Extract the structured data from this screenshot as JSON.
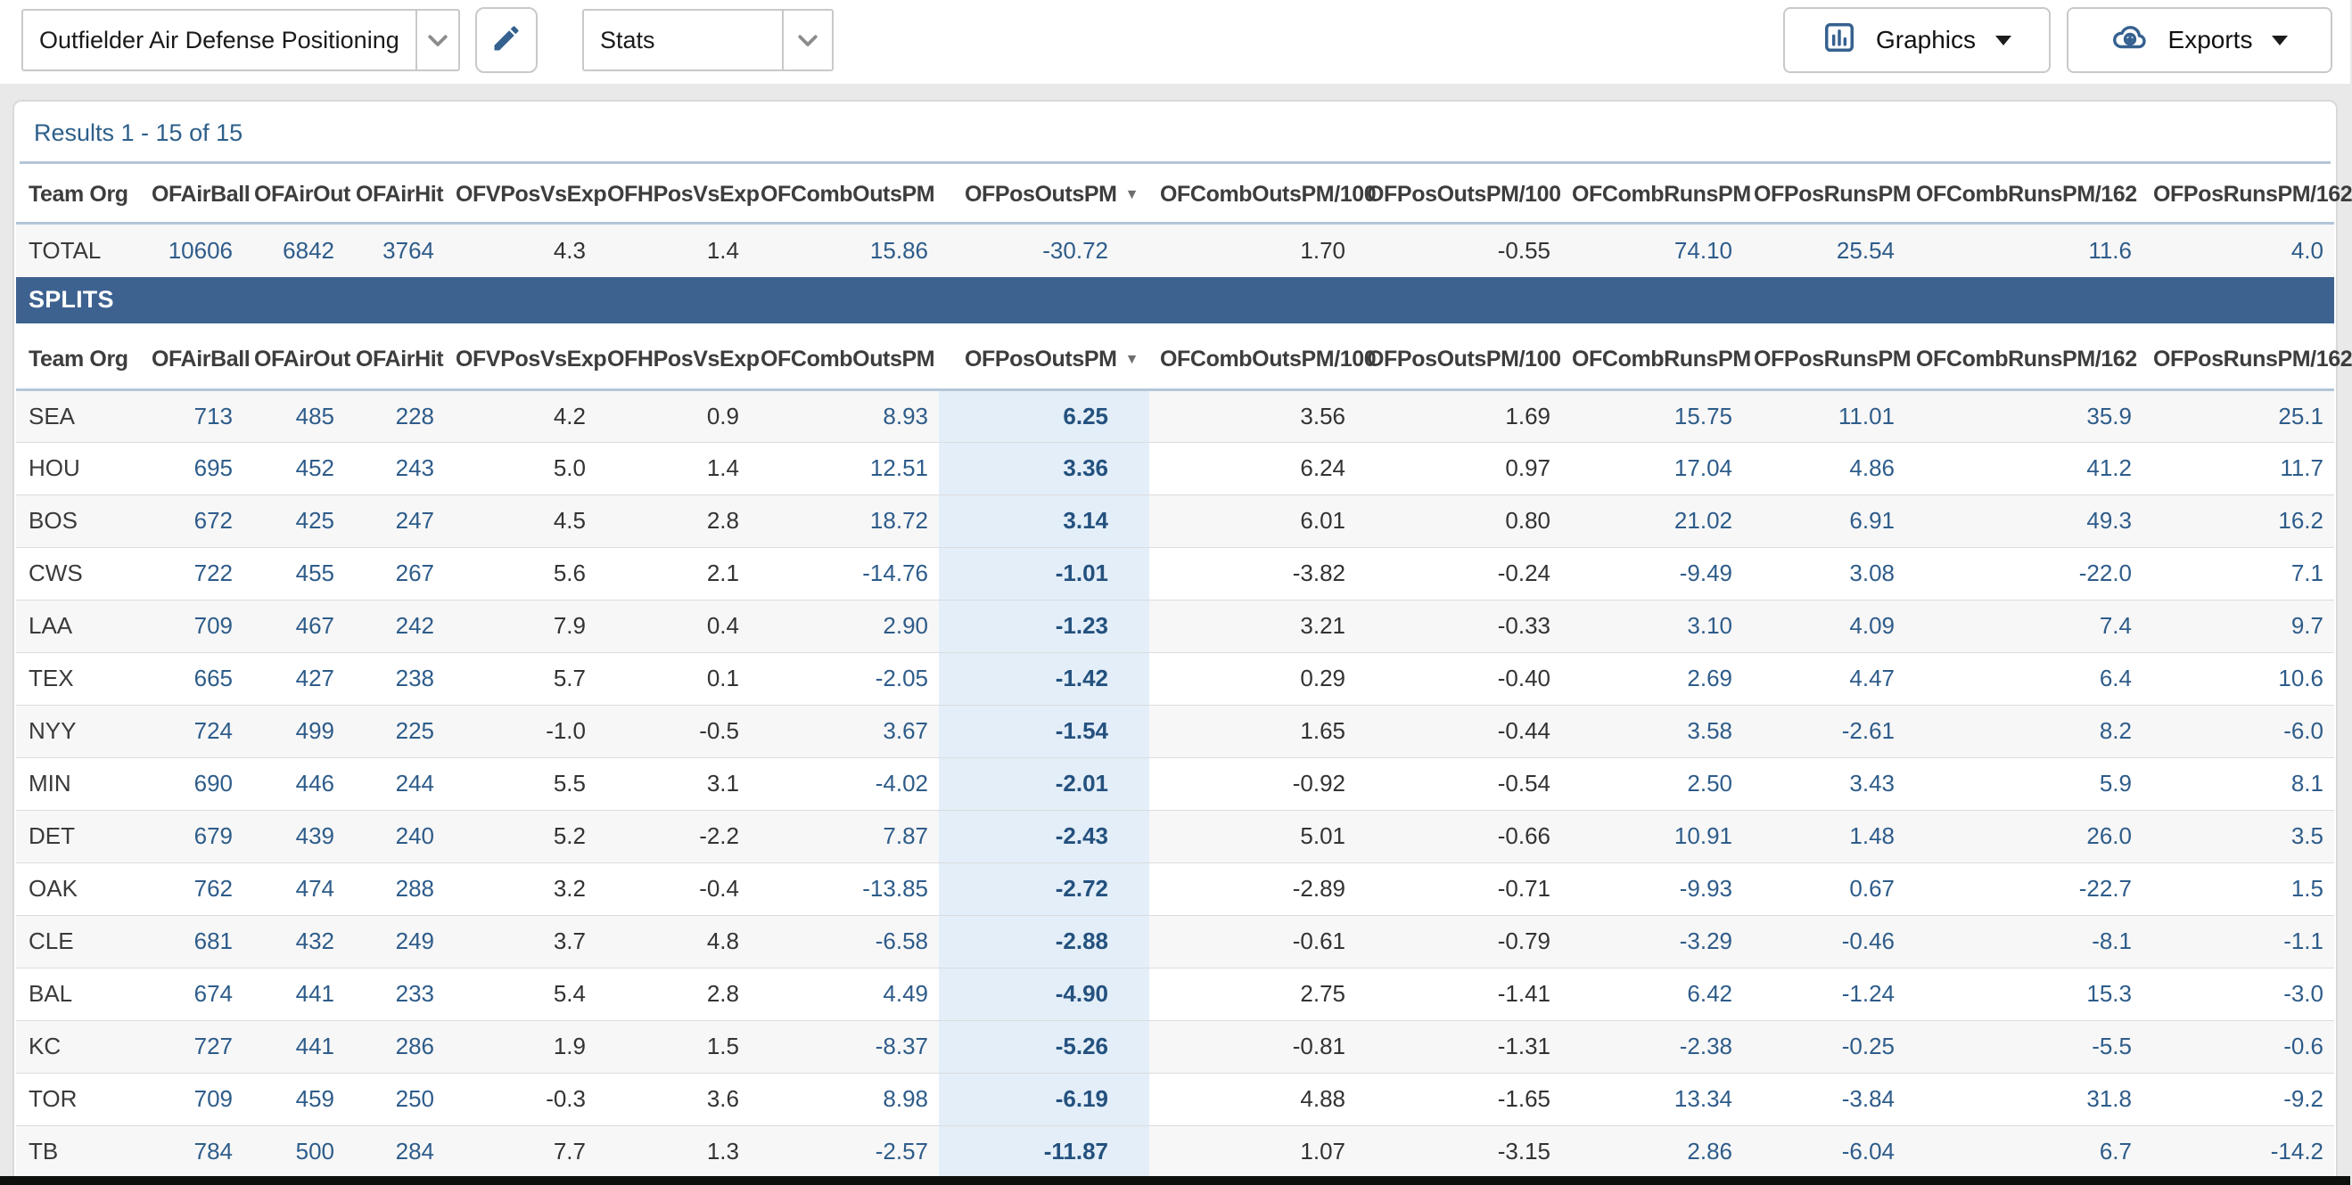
{
  "toolbar": {
    "report_select": {
      "value": "Outfielder Air Defense Positioning"
    },
    "edit_button": {
      "icon": "pencil-icon"
    },
    "stats_select": {
      "value": "Stats"
    },
    "graphics_button": {
      "label": "Graphics"
    },
    "exports_button": {
      "label": "Exports"
    }
  },
  "results": {
    "summary": "Results 1 - 15 of 15"
  },
  "table": {
    "columns": [
      "Team Org",
      "OFAirBall",
      "OFAirOut",
      "OFAirHit",
      "OFVPosVsExp",
      "OFHPosVsExp",
      "OFCombOutsPM",
      "OFPosOutsPM",
      "OFCombOutsPM/100",
      "OFPosOutsPM/100",
      "OFCombRunsPM",
      "OFPosRunsPM",
      "OFCombRunsPM/162",
      "OFPosRunsPM/162"
    ],
    "sort": {
      "column": "OFPosOutsPM",
      "direction": "desc",
      "arrow": "▼"
    },
    "total_row": {
      "label": "TOTAL",
      "values": [
        "10606",
        "6842",
        "3764",
        "4.3",
        "1.4",
        "15.86",
        "-30.72",
        "1.70",
        "-0.55",
        "74.10",
        "25.54",
        "11.6",
        "4.0"
      ]
    },
    "splits_label": "SPLITS",
    "rows": [
      {
        "team": "SEA",
        "values": [
          "713",
          "485",
          "228",
          "4.2",
          "0.9",
          "8.93",
          "6.25",
          "3.56",
          "1.69",
          "15.75",
          "11.01",
          "35.9",
          "25.1"
        ]
      },
      {
        "team": "HOU",
        "values": [
          "695",
          "452",
          "243",
          "5.0",
          "1.4",
          "12.51",
          "3.36",
          "6.24",
          "0.97",
          "17.04",
          "4.86",
          "41.2",
          "11.7"
        ]
      },
      {
        "team": "BOS",
        "values": [
          "672",
          "425",
          "247",
          "4.5",
          "2.8",
          "18.72",
          "3.14",
          "6.01",
          "0.80",
          "21.02",
          "6.91",
          "49.3",
          "16.2"
        ]
      },
      {
        "team": "CWS",
        "values": [
          "722",
          "455",
          "267",
          "5.6",
          "2.1",
          "-14.76",
          "-1.01",
          "-3.82",
          "-0.24",
          "-9.49",
          "3.08",
          "-22.0",
          "7.1"
        ]
      },
      {
        "team": "LAA",
        "values": [
          "709",
          "467",
          "242",
          "7.9",
          "0.4",
          "2.90",
          "-1.23",
          "3.21",
          "-0.33",
          "3.10",
          "4.09",
          "7.4",
          "9.7"
        ]
      },
      {
        "team": "TEX",
        "values": [
          "665",
          "427",
          "238",
          "5.7",
          "0.1",
          "-2.05",
          "-1.42",
          "0.29",
          "-0.40",
          "2.69",
          "4.47",
          "6.4",
          "10.6"
        ]
      },
      {
        "team": "NYY",
        "values": [
          "724",
          "499",
          "225",
          "-1.0",
          "-0.5",
          "3.67",
          "-1.54",
          "1.65",
          "-0.44",
          "3.58",
          "-2.61",
          "8.2",
          "-6.0"
        ]
      },
      {
        "team": "MIN",
        "values": [
          "690",
          "446",
          "244",
          "5.5",
          "3.1",
          "-4.02",
          "-2.01",
          "-0.92",
          "-0.54",
          "2.50",
          "3.43",
          "5.9",
          "8.1"
        ]
      },
      {
        "team": "DET",
        "values": [
          "679",
          "439",
          "240",
          "5.2",
          "-2.2",
          "7.87",
          "-2.43",
          "5.01",
          "-0.66",
          "10.91",
          "1.48",
          "26.0",
          "3.5"
        ]
      },
      {
        "team": "OAK",
        "values": [
          "762",
          "474",
          "288",
          "3.2",
          "-0.4",
          "-13.85",
          "-2.72",
          "-2.89",
          "-0.71",
          "-9.93",
          "0.67",
          "-22.7",
          "1.5"
        ]
      },
      {
        "team": "CLE",
        "values": [
          "681",
          "432",
          "249",
          "3.7",
          "4.8",
          "-6.58",
          "-2.88",
          "-0.61",
          "-0.79",
          "-3.29",
          "-0.46",
          "-8.1",
          "-1.1"
        ]
      },
      {
        "team": "BAL",
        "values": [
          "674",
          "441",
          "233",
          "5.4",
          "2.8",
          "4.49",
          "-4.90",
          "2.75",
          "-1.41",
          "6.42",
          "-1.24",
          "15.3",
          "-3.0"
        ]
      },
      {
        "team": "KC",
        "values": [
          "727",
          "441",
          "286",
          "1.9",
          "1.5",
          "-8.37",
          "-5.26",
          "-0.81",
          "-1.31",
          "-2.38",
          "-0.25",
          "-5.5",
          "-0.6"
        ]
      },
      {
        "team": "TOR",
        "values": [
          "709",
          "459",
          "250",
          "-0.3",
          "3.6",
          "8.98",
          "-6.19",
          "4.88",
          "-1.65",
          "13.34",
          "-3.84",
          "31.8",
          "-9.2"
        ]
      },
      {
        "team": "TB",
        "values": [
          "784",
          "500",
          "284",
          "7.7",
          "1.3",
          "-2.57",
          "-11.87",
          "1.07",
          "-3.15",
          "2.86",
          "-6.04",
          "6.7",
          "-14.2"
        ]
      }
    ]
  },
  "colors": {
    "value_blue": "#2e5c8a",
    "value_dark": "#333333",
    "sorted_value_blue": "#24517e",
    "splits_bar_bg": "#3d6290",
    "highlight_column_bg": "#e3eef8",
    "results_link_blue": "#2d5f8a",
    "icon_blue": "#35618f",
    "header_divider": "#b4c6d8"
  }
}
